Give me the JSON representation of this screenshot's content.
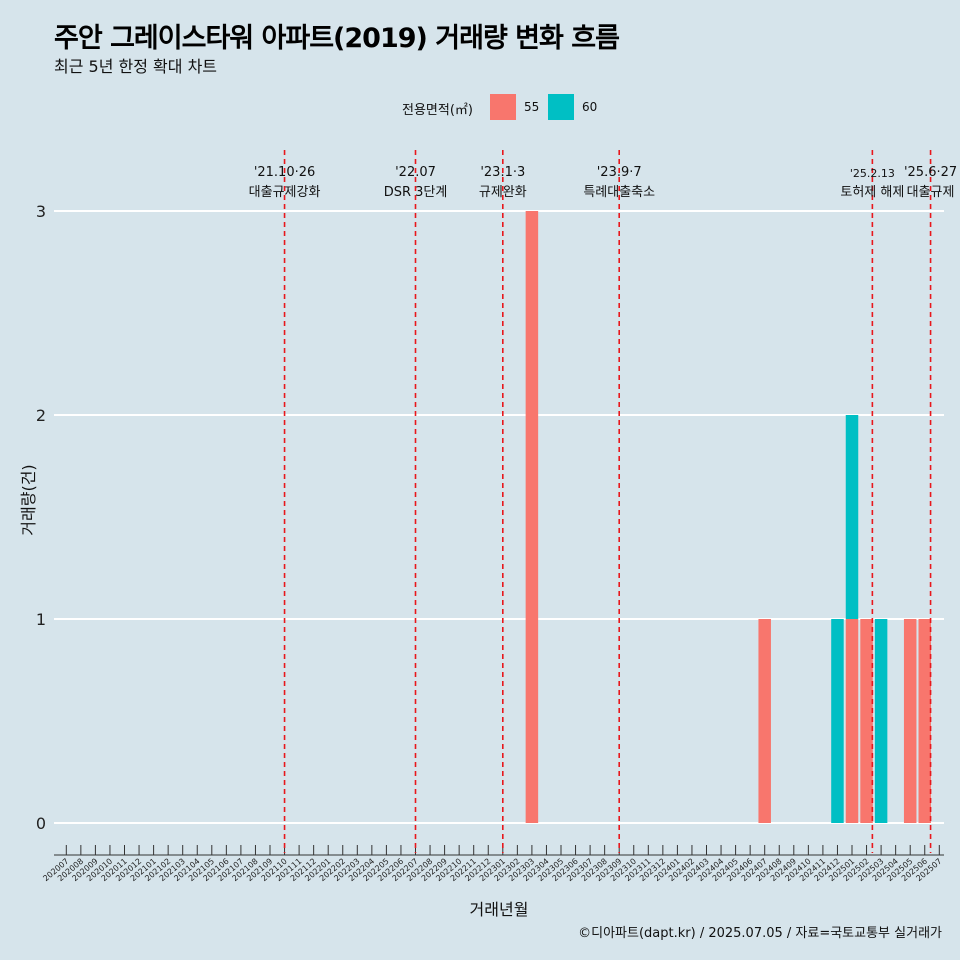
{
  "header": {
    "title": "주안 그레이스타워 아파트(2019) 거래량 변화 흐름",
    "subtitle": "최근 5년 한정 확대 차트"
  },
  "legend": {
    "title": "전용면적(㎡)",
    "items": [
      {
        "label": "55",
        "color": "#f8766d"
      },
      {
        "label": "60",
        "color": "#00bfc4"
      }
    ]
  },
  "caption": "©디아파트(dapt.kr) / 2025.07.05 / 자료=국토교통부 실거래가",
  "chart_data": {
    "type": "bar",
    "xlabel": "거래년월",
    "ylabel": "거래량(건)",
    "ylim": [
      0,
      3
    ],
    "yticks": [
      0,
      1,
      2,
      3
    ],
    "grid": true,
    "legend_position": "top",
    "stacked": true,
    "categories": [
      "202007",
      "202008",
      "202009",
      "202010",
      "202011",
      "202012",
      "202101",
      "202102",
      "202103",
      "202104",
      "202105",
      "202106",
      "202107",
      "202108",
      "202109",
      "202110",
      "202111",
      "202112",
      "202201",
      "202202",
      "202203",
      "202204",
      "202205",
      "202206",
      "202207",
      "202208",
      "202209",
      "202210",
      "202211",
      "202212",
      "202301",
      "202302",
      "202303",
      "202304",
      "202305",
      "202306",
      "202307",
      "202308",
      "202309",
      "202310",
      "202311",
      "202312",
      "202401",
      "202402",
      "202403",
      "202404",
      "202405",
      "202406",
      "202407",
      "202408",
      "202409",
      "202410",
      "202411",
      "202412",
      "202501",
      "202502",
      "202503",
      "202504",
      "202505",
      "202506",
      "202507"
    ],
    "series": [
      {
        "name": "55",
        "color": "#f8766d",
        "values": [
          0,
          0,
          0,
          0,
          0,
          0,
          0,
          0,
          0,
          0,
          0,
          0,
          0,
          0,
          0,
          0,
          0,
          0,
          0,
          0,
          0,
          0,
          0,
          0,
          0,
          0,
          0,
          0,
          0,
          0,
          0,
          0,
          3,
          0,
          0,
          0,
          0,
          0,
          0,
          0,
          0,
          0,
          0,
          0,
          0,
          0,
          0,
          0,
          1,
          0,
          0,
          0,
          0,
          0,
          1,
          1,
          0,
          0,
          1,
          1,
          0
        ]
      },
      {
        "name": "60",
        "color": "#00bfc4",
        "values": [
          0,
          0,
          0,
          0,
          0,
          0,
          0,
          0,
          0,
          0,
          0,
          0,
          0,
          0,
          0,
          0,
          0,
          0,
          0,
          0,
          0,
          0,
          0,
          0,
          0,
          0,
          0,
          0,
          0,
          0,
          0,
          0,
          0,
          0,
          0,
          0,
          0,
          0,
          0,
          0,
          0,
          0,
          0,
          0,
          0,
          0,
          0,
          0,
          0,
          0,
          0,
          0,
          0,
          1,
          1,
          0,
          1,
          0,
          0,
          0,
          0
        ]
      }
    ],
    "events": [
      {
        "date": "'21.10·26",
        "label": "대출규제강화",
        "x": 15.0
      },
      {
        "date": "'22.07",
        "label": "DSR 3단계",
        "x": 24.0
      },
      {
        "date": "'23.1·3",
        "label": "규제완화",
        "x": 30.0
      },
      {
        "date": "'23.9·7",
        "label": "특례대출축소",
        "x": 38.0
      },
      {
        "date": "'25.2.13",
        "label": "토허제 해제",
        "x": 55.4
      },
      {
        "date": "'25.6·27",
        "label": "대출규제",
        "x": 59.4
      }
    ]
  }
}
